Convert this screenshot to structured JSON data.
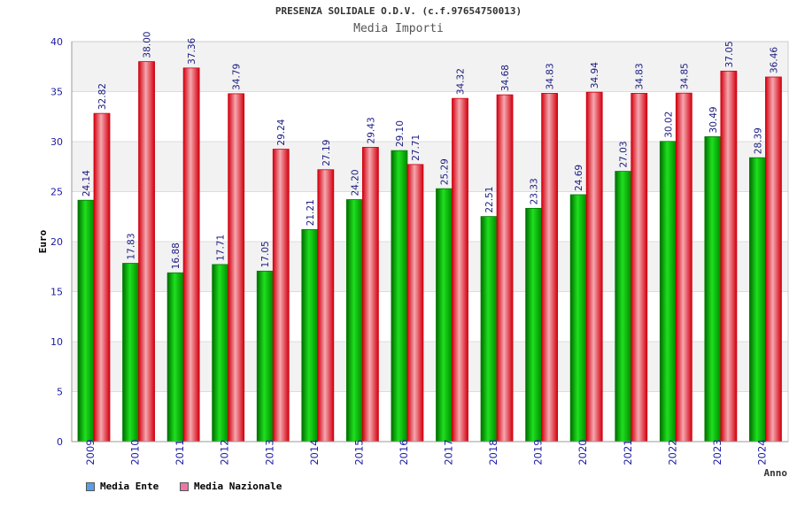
{
  "chart_data": {
    "type": "bar",
    "title": "PRESENZA SOLIDALE O.D.V. (c.f.97654750013)",
    "subtitle": "Media Importi",
    "xlabel": "Anno",
    "ylabel": "Euro",
    "ylim": [
      0,
      40
    ],
    "yticks": [
      "0",
      "5",
      "10",
      "15",
      "20",
      "25",
      "30",
      "35",
      "40"
    ],
    "categories": [
      "2009",
      "2010",
      "2011",
      "2012",
      "2013",
      "2014",
      "2015",
      "2016",
      "2017",
      "2018",
      "2019",
      "2020",
      "2021",
      "2022",
      "2023",
      "2024"
    ],
    "series": [
      {
        "name": "Media Ente",
        "values": [
          24.14,
          17.83,
          16.88,
          17.71,
          17.05,
          21.21,
          24.2,
          29.1,
          25.29,
          22.51,
          23.33,
          24.69,
          27.03,
          30.02,
          30.49,
          28.39
        ],
        "labels": [
          "24.14",
          "17.83",
          "16.88",
          "17.71",
          "17.05",
          "21.21",
          "24.20",
          "29.10",
          "25.29",
          "22.51",
          "23.33",
          "24.69",
          "27.03",
          "30.02",
          "30.49",
          "28.39"
        ],
        "color": "#00b800"
      },
      {
        "name": "Media Nazionale",
        "values": [
          32.82,
          38.0,
          37.36,
          34.79,
          29.24,
          27.19,
          29.43,
          27.71,
          34.32,
          34.68,
          34.83,
          34.94,
          34.83,
          34.85,
          37.05,
          36.46
        ],
        "labels": [
          "32.82",
          "38.00",
          "37.36",
          "34.79",
          "29.24",
          "27.19",
          "29.43",
          "27.71",
          "34.32",
          "34.68",
          "34.83",
          "34.94",
          "34.83",
          "34.85",
          "37.05",
          "36.46"
        ],
        "color": "#e8101e"
      }
    ],
    "legend": {
      "position": "bottom-left",
      "items": [
        {
          "label": "Media Ente",
          "color": "#5a9ee6"
        },
        {
          "label": "Media Nazionale",
          "color": "#e878a8"
        }
      ]
    }
  }
}
